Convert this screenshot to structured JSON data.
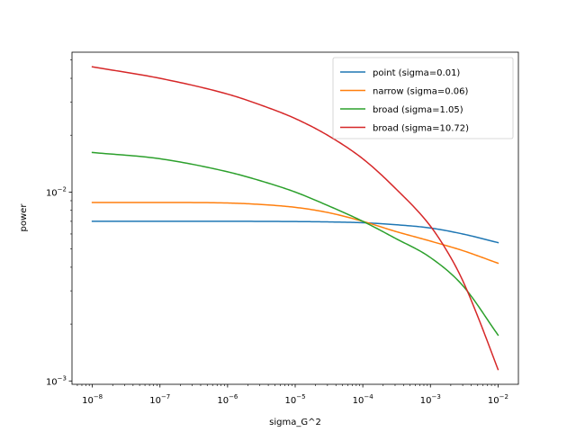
{
  "chart_data": {
    "type": "line",
    "title": "",
    "xlabel": "sigma_G^2",
    "ylabel": "power",
    "xscale": "log",
    "yscale": "log",
    "xlim": [
      5e-09,
      0.02
    ],
    "ylim": [
      0.00096,
      0.055
    ],
    "grid": false,
    "legend_position": "top-right",
    "x_ticks": [
      {
        "value": 1e-08,
        "mantissa": "10",
        "exp": "−8"
      },
      {
        "value": 1e-07,
        "mantissa": "10",
        "exp": "−7"
      },
      {
        "value": 1e-06,
        "mantissa": "10",
        "exp": "−6"
      },
      {
        "value": 1e-05,
        "mantissa": "10",
        "exp": "−5"
      },
      {
        "value": 0.0001,
        "mantissa": "10",
        "exp": "−4"
      },
      {
        "value": 0.001,
        "mantissa": "10",
        "exp": "−3"
      },
      {
        "value": 0.01,
        "mantissa": "10",
        "exp": "−2"
      }
    ],
    "y_ticks": [
      {
        "value": 0.001,
        "mantissa": "10",
        "exp": "−3"
      },
      {
        "value": 0.01,
        "mantissa": "10",
        "exp": "−2"
      }
    ],
    "series": [
      {
        "name": "point (sigma=0.01)",
        "color": "#1f77b4",
        "x": [
          1e-08,
          1e-07,
          1e-06,
          1e-05,
          3e-05,
          0.0001,
          0.0003,
          0.001,
          0.003,
          0.01
        ],
        "y": [
          0.007,
          0.007,
          0.007,
          0.00698,
          0.00695,
          0.00688,
          0.00672,
          0.00645,
          0.006,
          0.0054
        ]
      },
      {
        "name": "narrow (sigma=0.06)",
        "color": "#ff7f0e",
        "x": [
          1e-08,
          1e-07,
          1e-06,
          3e-06,
          1e-05,
          3e-05,
          0.0001,
          0.0003,
          0.001,
          0.003,
          0.01
        ],
        "y": [
          0.0088,
          0.0088,
          0.00875,
          0.0086,
          0.0083,
          0.0078,
          0.007,
          0.0062,
          0.0055,
          0.0049,
          0.0042
        ]
      },
      {
        "name": "broad (sigma=1.05)",
        "color": "#2ca02c",
        "x": [
          1e-08,
          1e-07,
          1e-06,
          3e-06,
          1e-05,
          3e-05,
          0.0001,
          0.0003,
          0.001,
          0.003,
          0.01
        ],
        "y": [
          0.0162,
          0.015,
          0.0128,
          0.0115,
          0.01,
          0.0085,
          0.007,
          0.0057,
          0.0045,
          0.0032,
          0.00175
        ]
      },
      {
        "name": "broad (sigma=10.72)",
        "color": "#d62728",
        "x": [
          1e-08,
          1e-07,
          1e-06,
          3e-06,
          1e-05,
          3e-05,
          0.0001,
          0.0003,
          0.001,
          0.002,
          0.003,
          0.005,
          0.01
        ],
        "y": [
          0.046,
          0.04,
          0.033,
          0.029,
          0.0245,
          0.02,
          0.015,
          0.0105,
          0.0066,
          0.0045,
          0.0034,
          0.0022,
          0.00115
        ]
      }
    ]
  }
}
